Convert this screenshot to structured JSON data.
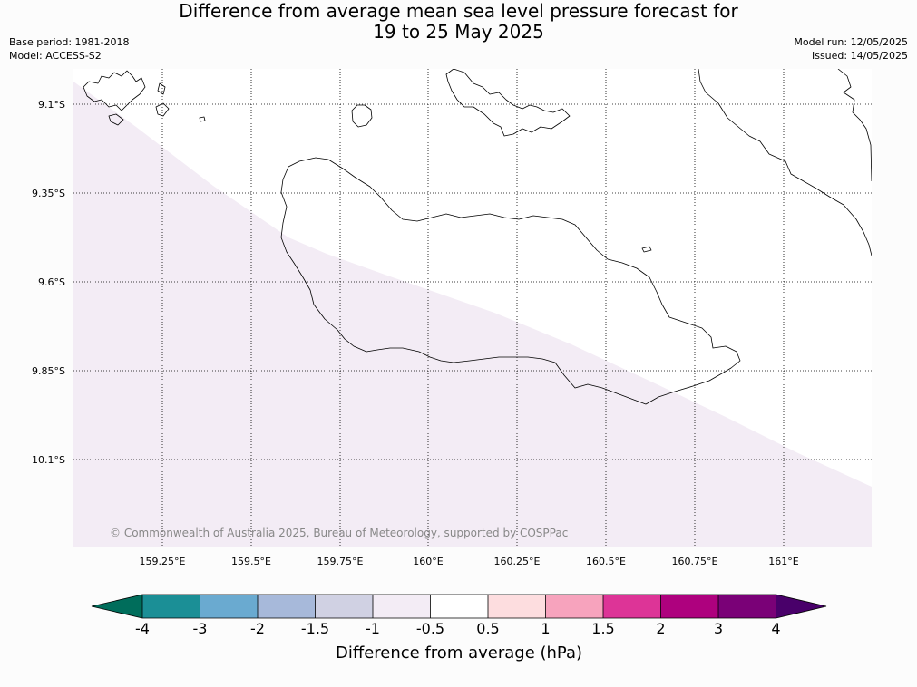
{
  "title": {
    "line1": "Difference from average mean sea level pressure forecast for",
    "line2": "19 to 25 May 2025"
  },
  "meta_left": {
    "base_period": "Base period: 1981-2018",
    "model": "Model: ACCESS-S2"
  },
  "meta_right": {
    "model_run": "Model run: 12/05/2025",
    "issued": "Issued: 14/05/2025"
  },
  "map": {
    "lat_labels": [
      "9.1°S",
      "9.35°S",
      "9.6°S",
      "9.85°S",
      "10.1°S"
    ],
    "lon_labels": [
      "159.25°E",
      "159.5°E",
      "159.75°E",
      "160°E",
      "160.25°E",
      "160.5°E",
      "160.75°E",
      "161°E"
    ],
    "copyright": "© Commonwealth of Australia 2025, Bureau of Meteorology, supported by COSPPac",
    "background_color": "#ffffff",
    "anomaly_band_color": "#f3ecf5",
    "anomaly_band_range": "-1 to -0.5",
    "coastline_color": "#000000",
    "gridline_style": "dotted"
  },
  "colorbar": {
    "label": "Difference from average (hPa)",
    "ticks": [
      "-4",
      "-3",
      "-2",
      "-1.5",
      "-1",
      "-0.5",
      "0.5",
      "1",
      "1.5",
      "2",
      "3",
      "4"
    ],
    "colors": [
      "#1b8f96",
      "#6aaad0",
      "#a7b9da",
      "#d0d1e3",
      "#f3ecf5",
      "#ffffff",
      "#fddddf",
      "#f7a3bd",
      "#dd3497",
      "#ae017e",
      "#7a0177"
    ],
    "extend_low_color": "#006d5b",
    "extend_high_color": "#49006a"
  }
}
